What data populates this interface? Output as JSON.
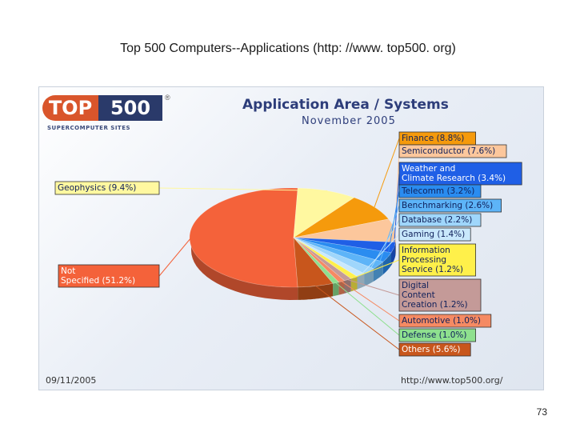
{
  "slide": {
    "title": "Top 500 Computers--Applications (http: //www. top500. org)",
    "page_number": "73"
  },
  "panel": {
    "logo_top": "TOP",
    "logo_number": "500",
    "logo_registered": "®",
    "logo_subtitle": "SUPERCOMPUTER SITES",
    "footer_date": "09/11/2005",
    "footer_url": "http://www.top500.org/"
  },
  "chart_data": {
    "type": "pie",
    "title": "Application Area / Systems",
    "subtitle": "November 2005",
    "slices": [
      {
        "name": "Not Specified",
        "label": "Not Specified (51.2%)",
        "value": 51.2,
        "color": "#f4623a"
      },
      {
        "name": "Geophysics",
        "label": "Geophysics (9.4%)",
        "value": 9.4,
        "color": "#fff8a0"
      },
      {
        "name": "Finance",
        "label": "Finance (8.8%)",
        "value": 8.8,
        "color": "#f59a0c"
      },
      {
        "name": "Semiconductor",
        "label": "Semiconductor (7.6%)",
        "value": 7.6,
        "color": "#fcc79c"
      },
      {
        "name": "Weather and Climate Research",
        "label": "Weather and Climate Research (3.4%)",
        "value": 3.4,
        "color": "#1f5fe6"
      },
      {
        "name": "Telecomm",
        "label": "Telecomm (3.2%)",
        "value": 3.2,
        "color": "#2a8cf0"
      },
      {
        "name": "Benchmarking",
        "label": "Benchmarking (2.6%)",
        "value": 2.6,
        "color": "#5db4f8"
      },
      {
        "name": "Database",
        "label": "Database (2.2%)",
        "value": 2.2,
        "color": "#9fd6fb"
      },
      {
        "name": "Gaming",
        "label": "Gaming (1.4%)",
        "value": 1.4,
        "color": "#c9e8fc"
      },
      {
        "name": "Information Processing Service",
        "label": "Information Processing Service (1.2%)",
        "value": 1.2,
        "color": "#fff04a"
      },
      {
        "name": "Digital Content Creation",
        "label": "Digital Content Creation (1.2%)",
        "value": 1.2,
        "color": "#c49a98"
      },
      {
        "name": "Automotive",
        "label": "Automotive (1.0%)",
        "value": 1.0,
        "color": "#f58a63"
      },
      {
        "name": "Defense",
        "label": "Defense (1.0%)",
        "value": 1.0,
        "color": "#8ee08e"
      },
      {
        "name": "Others",
        "label": "Others (5.6%)",
        "value": 5.6,
        "color": "#c8561c"
      }
    ],
    "legend_placement": "right"
  }
}
